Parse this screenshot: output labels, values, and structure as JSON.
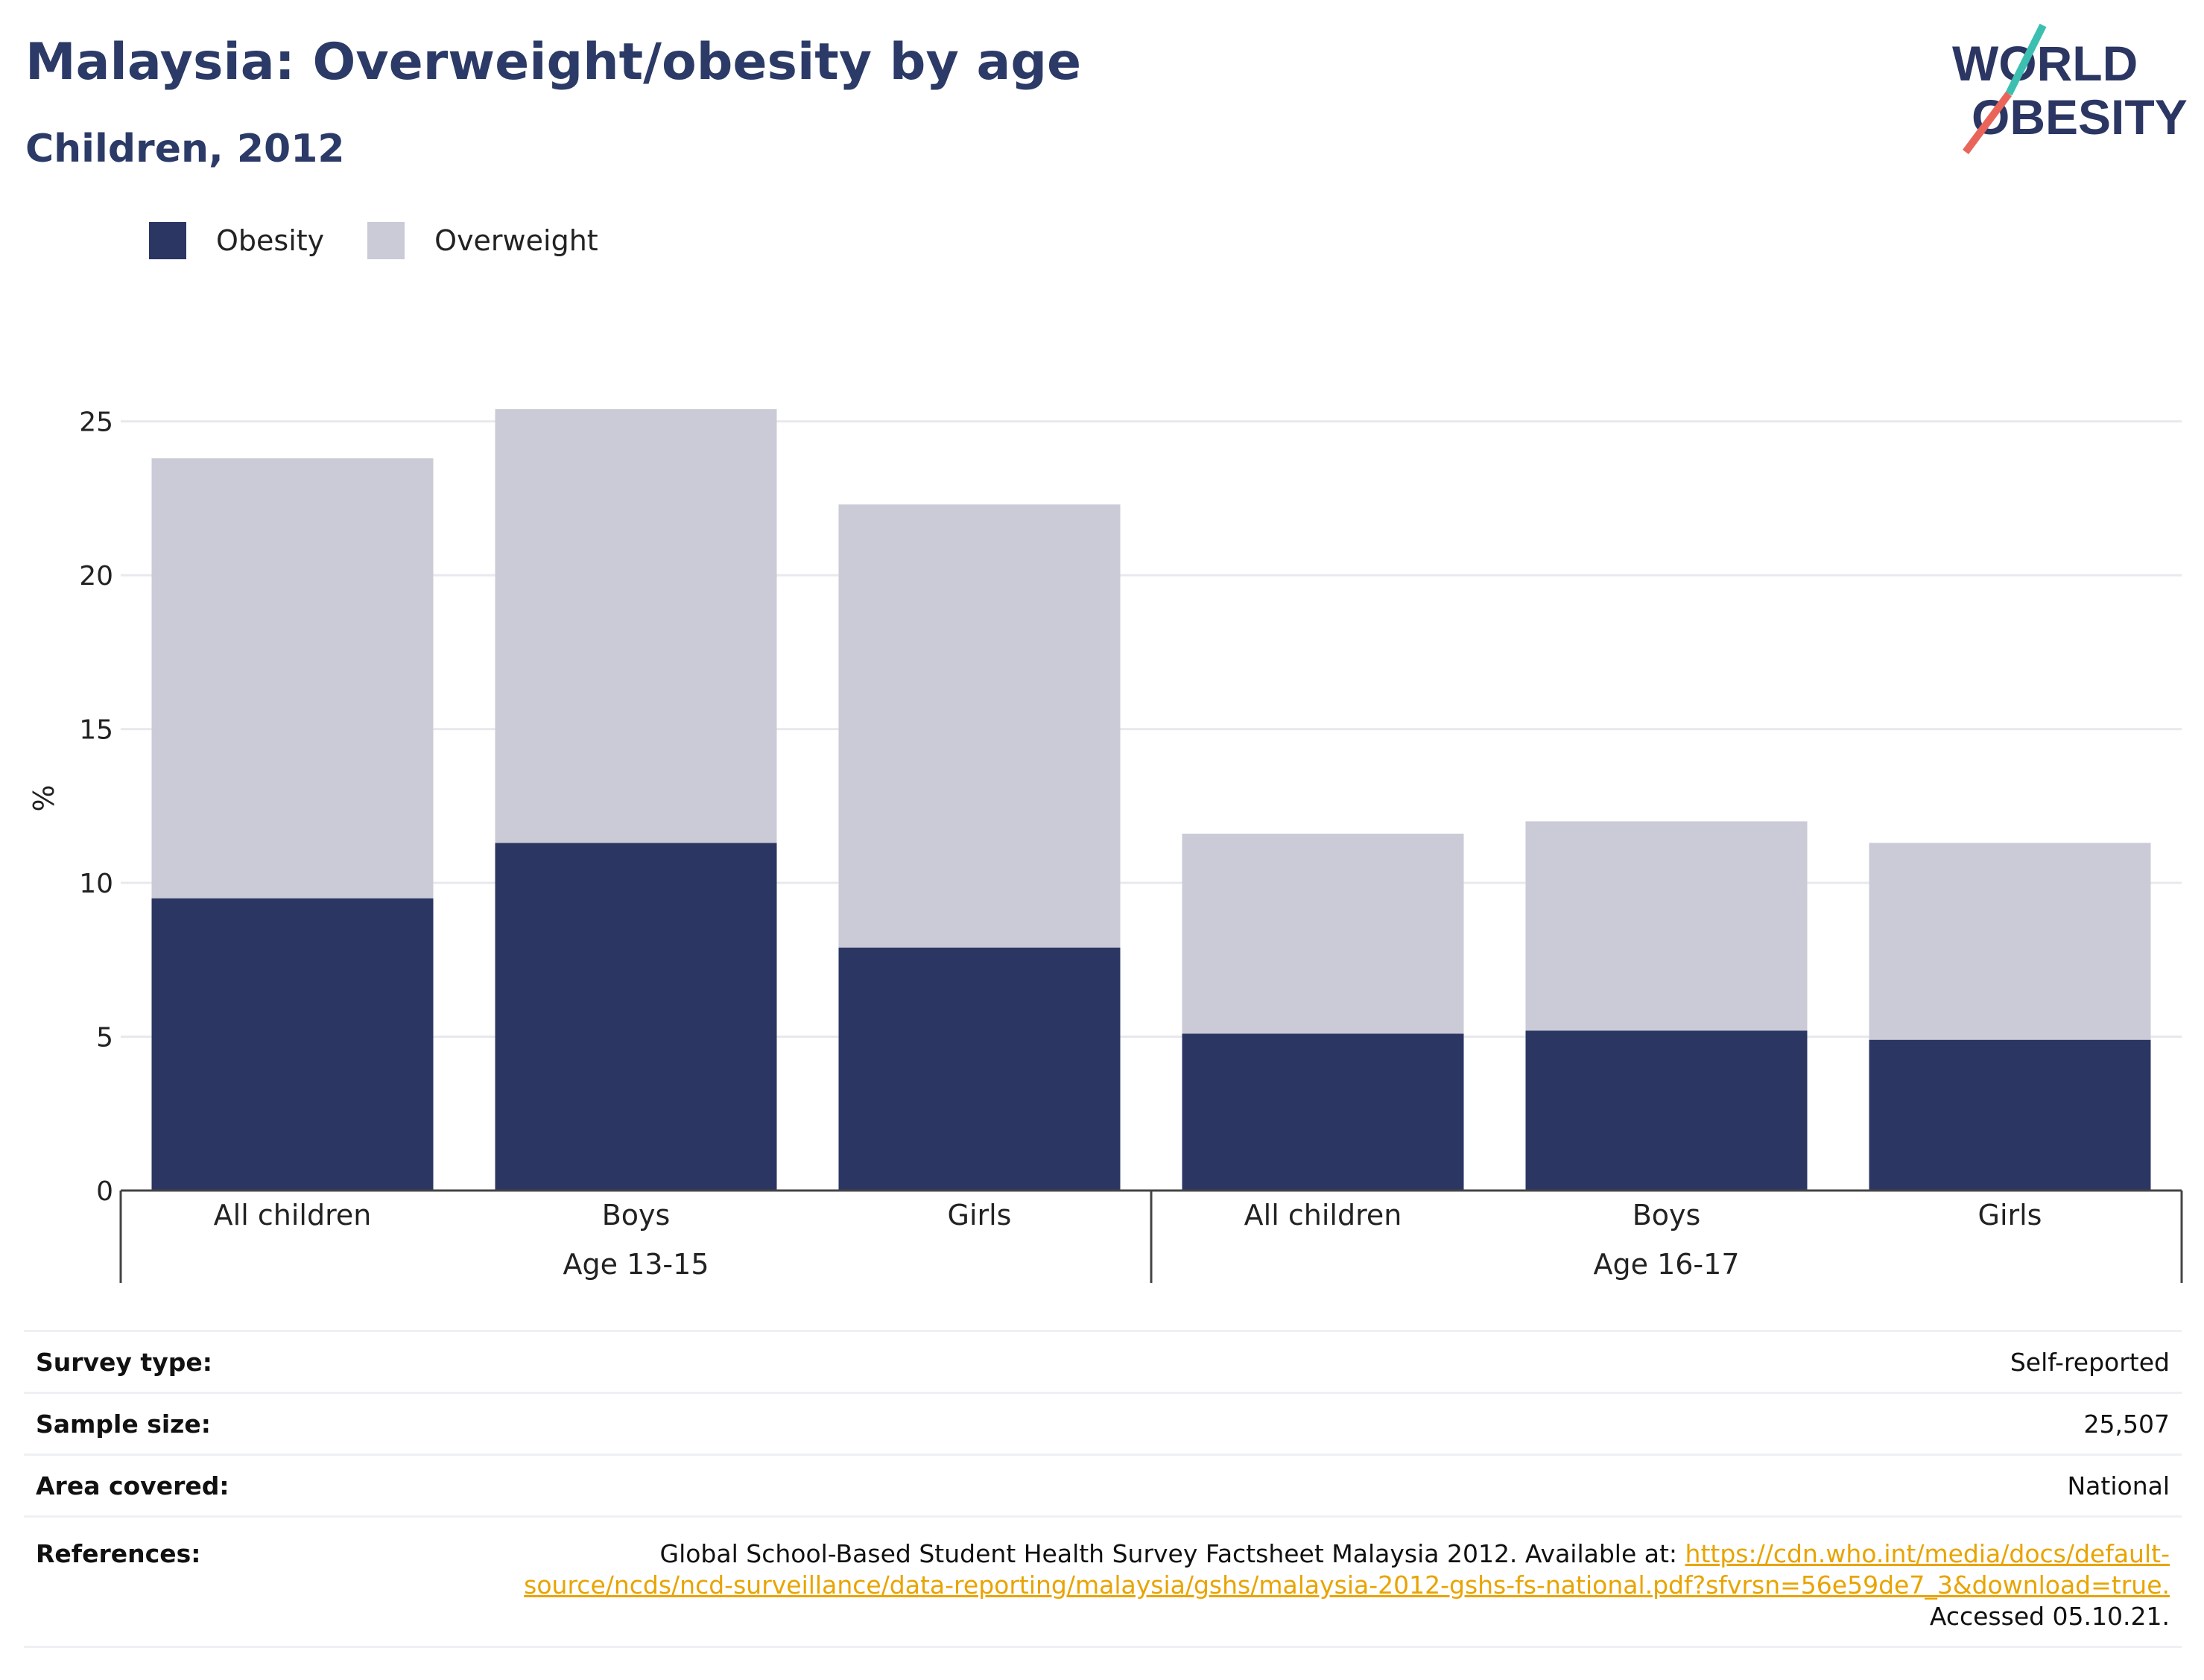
{
  "header": {
    "title": "Malaysia: Overweight/obesity by age",
    "subtitle": "Children, 2012"
  },
  "logo": {
    "line1": "WORLD",
    "line2": "OBESITY"
  },
  "colors": {
    "obesity": "#2b3663",
    "overweight": "#cacbd7",
    "title": "#2b3a67",
    "link": "#e8a400"
  },
  "chart_data": {
    "type": "bar",
    "stacked": true,
    "categories": [
      "All children",
      "Boys",
      "Girls",
      "All children",
      "Boys",
      "Girls"
    ],
    "groups": [
      {
        "label": "Age 13-15",
        "start": 0,
        "end": 2
      },
      {
        "label": "Age 16-17",
        "start": 3,
        "end": 5
      }
    ],
    "series": [
      {
        "name": "Obesity",
        "values": [
          9.5,
          11.3,
          7.9,
          5.1,
          5.2,
          4.9
        ]
      },
      {
        "name": "Overweight",
        "values": [
          14.3,
          14.1,
          14.4,
          6.5,
          6.8,
          6.4
        ]
      }
    ],
    "ylabel": "%",
    "ylim": [
      0,
      25
    ],
    "yticks": [
      0,
      5,
      10,
      15,
      20,
      25
    ],
    "grid": true,
    "legend_position": "top-left"
  },
  "info": {
    "survey_type": {
      "label": "Survey type:",
      "value": "Self-reported"
    },
    "sample_size": {
      "label": "Sample size:",
      "value": "25,507"
    },
    "area_covered": {
      "label": "Area covered:",
      "value": "National"
    },
    "references": {
      "label": "References:",
      "text": "Global School-Based Student Health Survey Factsheet Malaysia 2012. Available at: ",
      "link_part1": "https://cdn.who.int/media/docs/default-",
      "link_part2": "source/ncds/ncd-surveillance/data-reporting/malaysia/gshs/malaysia-2012-gshs-fs-national.pdf?sfvrsn=56e59de7_3&download=true.",
      "accessed": "Accessed 05.10.21."
    }
  }
}
